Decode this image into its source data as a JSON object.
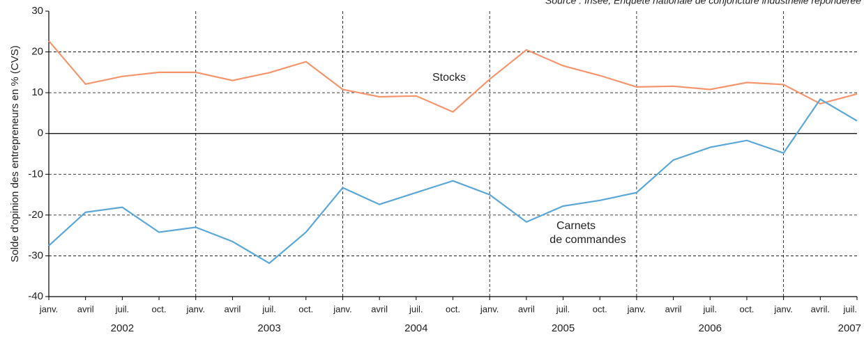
{
  "chart_data": {
    "type": "line",
    "source": "Source : Insee, Enquête nationale de conjoncture industrielle repondérée",
    "y_label": "Solde d'opinion des entrepreneurs en % (CVS)",
    "categories": [
      "janv.",
      "avril",
      "juil.",
      "oct.",
      "janv.",
      "avril",
      "juil.",
      "oct.",
      "janv.",
      "avril",
      "juil.",
      "oct.",
      "janv.",
      "avril",
      "juil.",
      "oct.",
      "janv.",
      "avril",
      "juil.",
      "oct.",
      "janv.",
      "avril.",
      "juil."
    ],
    "years": [
      "2002",
      "2003",
      "2004",
      "2005",
      "2006",
      "2007"
    ],
    "series": [
      {
        "name": "Stocks",
        "color": "#f4956e",
        "values": [
          22.7,
          12.1,
          14,
          15,
          15,
          13,
          14.9,
          17.6,
          10.8,
          9,
          9.2,
          5.3,
          13.3,
          20.5,
          16.6,
          14.2,
          11.4,
          11.6,
          10.8,
          12.5,
          12,
          7.3,
          9.7
        ]
      },
      {
        "name": "Carnets de commandes",
        "color": "#5aa7d8",
        "values": [
          -27.5,
          -19.3,
          -18.1,
          -24.2,
          -23,
          -26.5,
          -31.8,
          -24.2,
          -13.3,
          -17.4,
          -14.5,
          -11.6,
          -15,
          -21.7,
          -17.8,
          -16.4,
          -14.5,
          -6.5,
          -3.4,
          -1.7,
          -4.8,
          8.4,
          3.1
        ]
      }
    ],
    "annotations": [
      "Stocks",
      "Carnets",
      "de commandes"
    ],
    "ylim": [
      -40,
      30
    ],
    "yticks": [
      30,
      20,
      10,
      0,
      -10,
      -20,
      -30,
      -40
    ],
    "grid": true
  }
}
